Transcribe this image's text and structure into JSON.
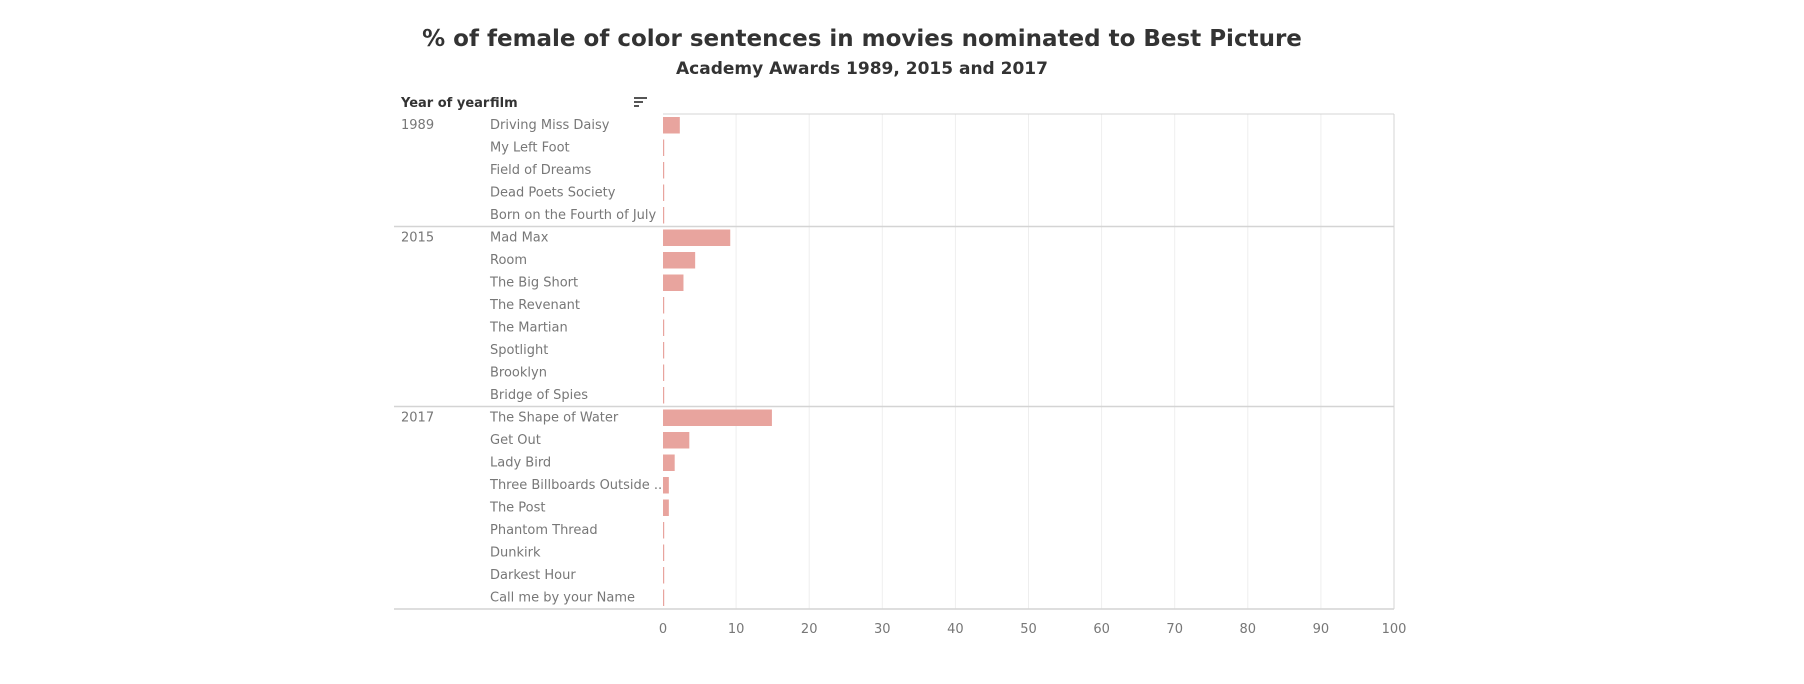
{
  "title": "% of female of color sentences in movies nominated to Best Picture",
  "subtitle": "Academy Awards 1989, 2015 and 2017",
  "headers": {
    "year": "Year of year",
    "film": "film"
  },
  "colors": {
    "bar": "#e8a49e",
    "grid": "#eeeeee",
    "border": "#d4d4d4",
    "text": "#777777"
  },
  "icons": {
    "sort": "sort-icon"
  },
  "chart_data": {
    "type": "bar",
    "orientation": "horizontal",
    "title": "% of female of color sentences in movies nominated to Best Picture",
    "subtitle": "Academy Awards 1989, 2015 and 2017",
    "xlim": [
      0,
      100
    ],
    "xticks": [
      0,
      10,
      20,
      30,
      40,
      50,
      60,
      70,
      80,
      90,
      100
    ],
    "grid": true,
    "groups": [
      {
        "year": "1989",
        "films": [
          {
            "film": "Driving Miss Daisy",
            "value": 2.3
          },
          {
            "film": "My Left Foot",
            "value": 0
          },
          {
            "film": "Field of Dreams",
            "value": 0
          },
          {
            "film": "Dead Poets Society",
            "value": 0
          },
          {
            "film": "Born on the Fourth of July",
            "value": 0
          }
        ]
      },
      {
        "year": "2015",
        "films": [
          {
            "film": "Mad Max",
            "value": 9.2
          },
          {
            "film": "Room",
            "value": 4.4
          },
          {
            "film": "The Big Short",
            "value": 2.8
          },
          {
            "film": "The Revenant",
            "value": 0
          },
          {
            "film": "The Martian",
            "value": 0
          },
          {
            "film": "Spotlight",
            "value": 0
          },
          {
            "film": "Brooklyn",
            "value": 0
          },
          {
            "film": "Bridge of Spies",
            "value": 0
          }
        ]
      },
      {
        "year": "2017",
        "films": [
          {
            "film": "The Shape of Water",
            "value": 14.9
          },
          {
            "film": "Get Out",
            "value": 3.6
          },
          {
            "film": "Lady Bird",
            "value": 1.6
          },
          {
            "film": "Three Billboards Outside ..",
            "value": 0.8
          },
          {
            "film": "The Post",
            "value": 0.8
          },
          {
            "film": "Phantom Thread",
            "value": 0
          },
          {
            "film": "Dunkirk",
            "value": 0
          },
          {
            "film": "Darkest Hour",
            "value": 0
          },
          {
            "film": "Call me by your Name",
            "value": 0
          }
        ]
      }
    ]
  }
}
